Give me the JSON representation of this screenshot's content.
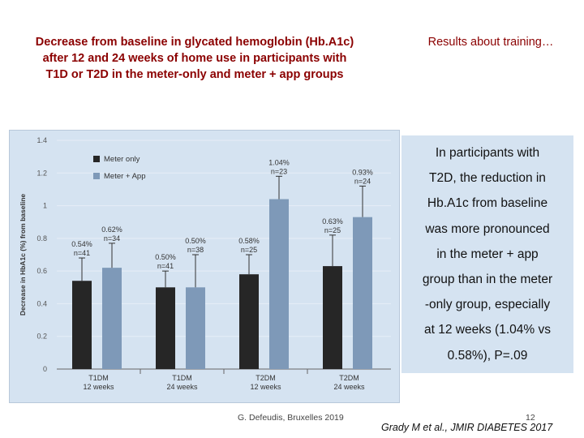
{
  "slide": {
    "title_lines": [
      "Decrease from baseline in glycated hemoglobin (Hb.A1c)",
      "after 12 and 24 weeks of home use in participants with",
      "T1D or T2D in the meter-only and meter + app groups"
    ],
    "right_title": "Results about training…",
    "callout_lines": [
      "In participants with",
      "T2D, the reduction in",
      "Hb.A1c from baseline",
      "was more pronounced",
      "in the meter + app",
      "group than in the meter",
      "-only group, especially",
      "at 12 weeks (1.04% vs",
      "0.58%), P=.09"
    ],
    "footer": "G. Defeudis, Bruxelles 2019",
    "page_number": "12",
    "reference": "Grady M et al., JMIR DIABETES 2017"
  },
  "colors": {
    "title": "#8b0000",
    "panel_bg": "#d5e3f1",
    "meter_only": "#262626",
    "meter_app": "#7e99b8"
  },
  "chart_data": {
    "type": "bar",
    "ylabel": "Decrease in HbA1c (%) from baseline",
    "ylim": [
      0,
      1.4
    ],
    "yticks": [
      "0",
      "0.2",
      "0.4",
      "0.6",
      "0.8",
      "1",
      "1.2",
      "1.4"
    ],
    "legend_position": "top-left",
    "categories": [
      {
        "line1": "T1DM",
        "line2": "12 weeks"
      },
      {
        "line1": "T1DM",
        "line2": "24 weeks"
      },
      {
        "line1": "T2DM",
        "line2": "12 weeks"
      },
      {
        "line1": "T2DM",
        "line2": "24 weeks"
      }
    ],
    "series": [
      {
        "name": "Meter only",
        "values": [
          0.54,
          0.5,
          0.58,
          0.63
        ],
        "error_upper": [
          0.68,
          0.6,
          0.7,
          0.82
        ],
        "labels": [
          {
            "pct": "0.54%",
            "n": "n=41"
          },
          {
            "pct": "0.50%",
            "n": "n=41"
          },
          {
            "pct": "0.58%",
            "n": "n=25"
          },
          {
            "pct": "0.63%",
            "n": "n=25"
          }
        ]
      },
      {
        "name": "Meter + App",
        "values": [
          0.62,
          0.5,
          1.04,
          0.93
        ],
        "error_upper": [
          0.77,
          0.7,
          1.18,
          1.12
        ],
        "labels": [
          {
            "pct": "0.62%",
            "n": "n=34"
          },
          {
            "pct": "0.50%",
            "n": "n=38"
          },
          {
            "pct": "1.04%",
            "n": "n=23"
          },
          {
            "pct": "0.93%",
            "n": "n=24"
          }
        ]
      }
    ]
  }
}
